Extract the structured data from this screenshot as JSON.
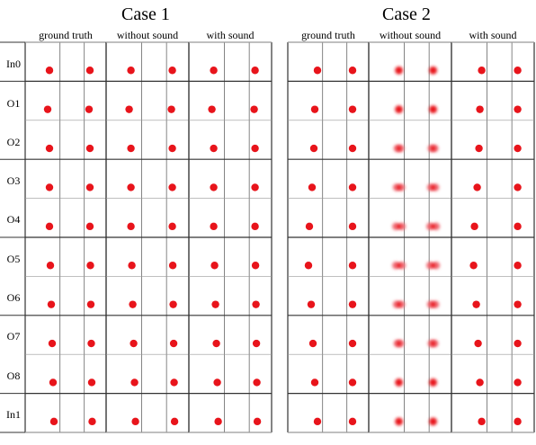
{
  "cases": [
    {
      "title": "Case 1",
      "columns": [
        "ground truth",
        "without sound",
        "with sound"
      ]
    },
    {
      "title": "Case 2",
      "columns": [
        "ground truth",
        "without sound",
        "with sound"
      ]
    }
  ],
  "rows": [
    "In0",
    "O1",
    "O2",
    "O3",
    "O4",
    "O5",
    "O6",
    "O7",
    "O8",
    "In1"
  ],
  "dot_color": "#e8141b",
  "blur_color": "#f07078"
}
